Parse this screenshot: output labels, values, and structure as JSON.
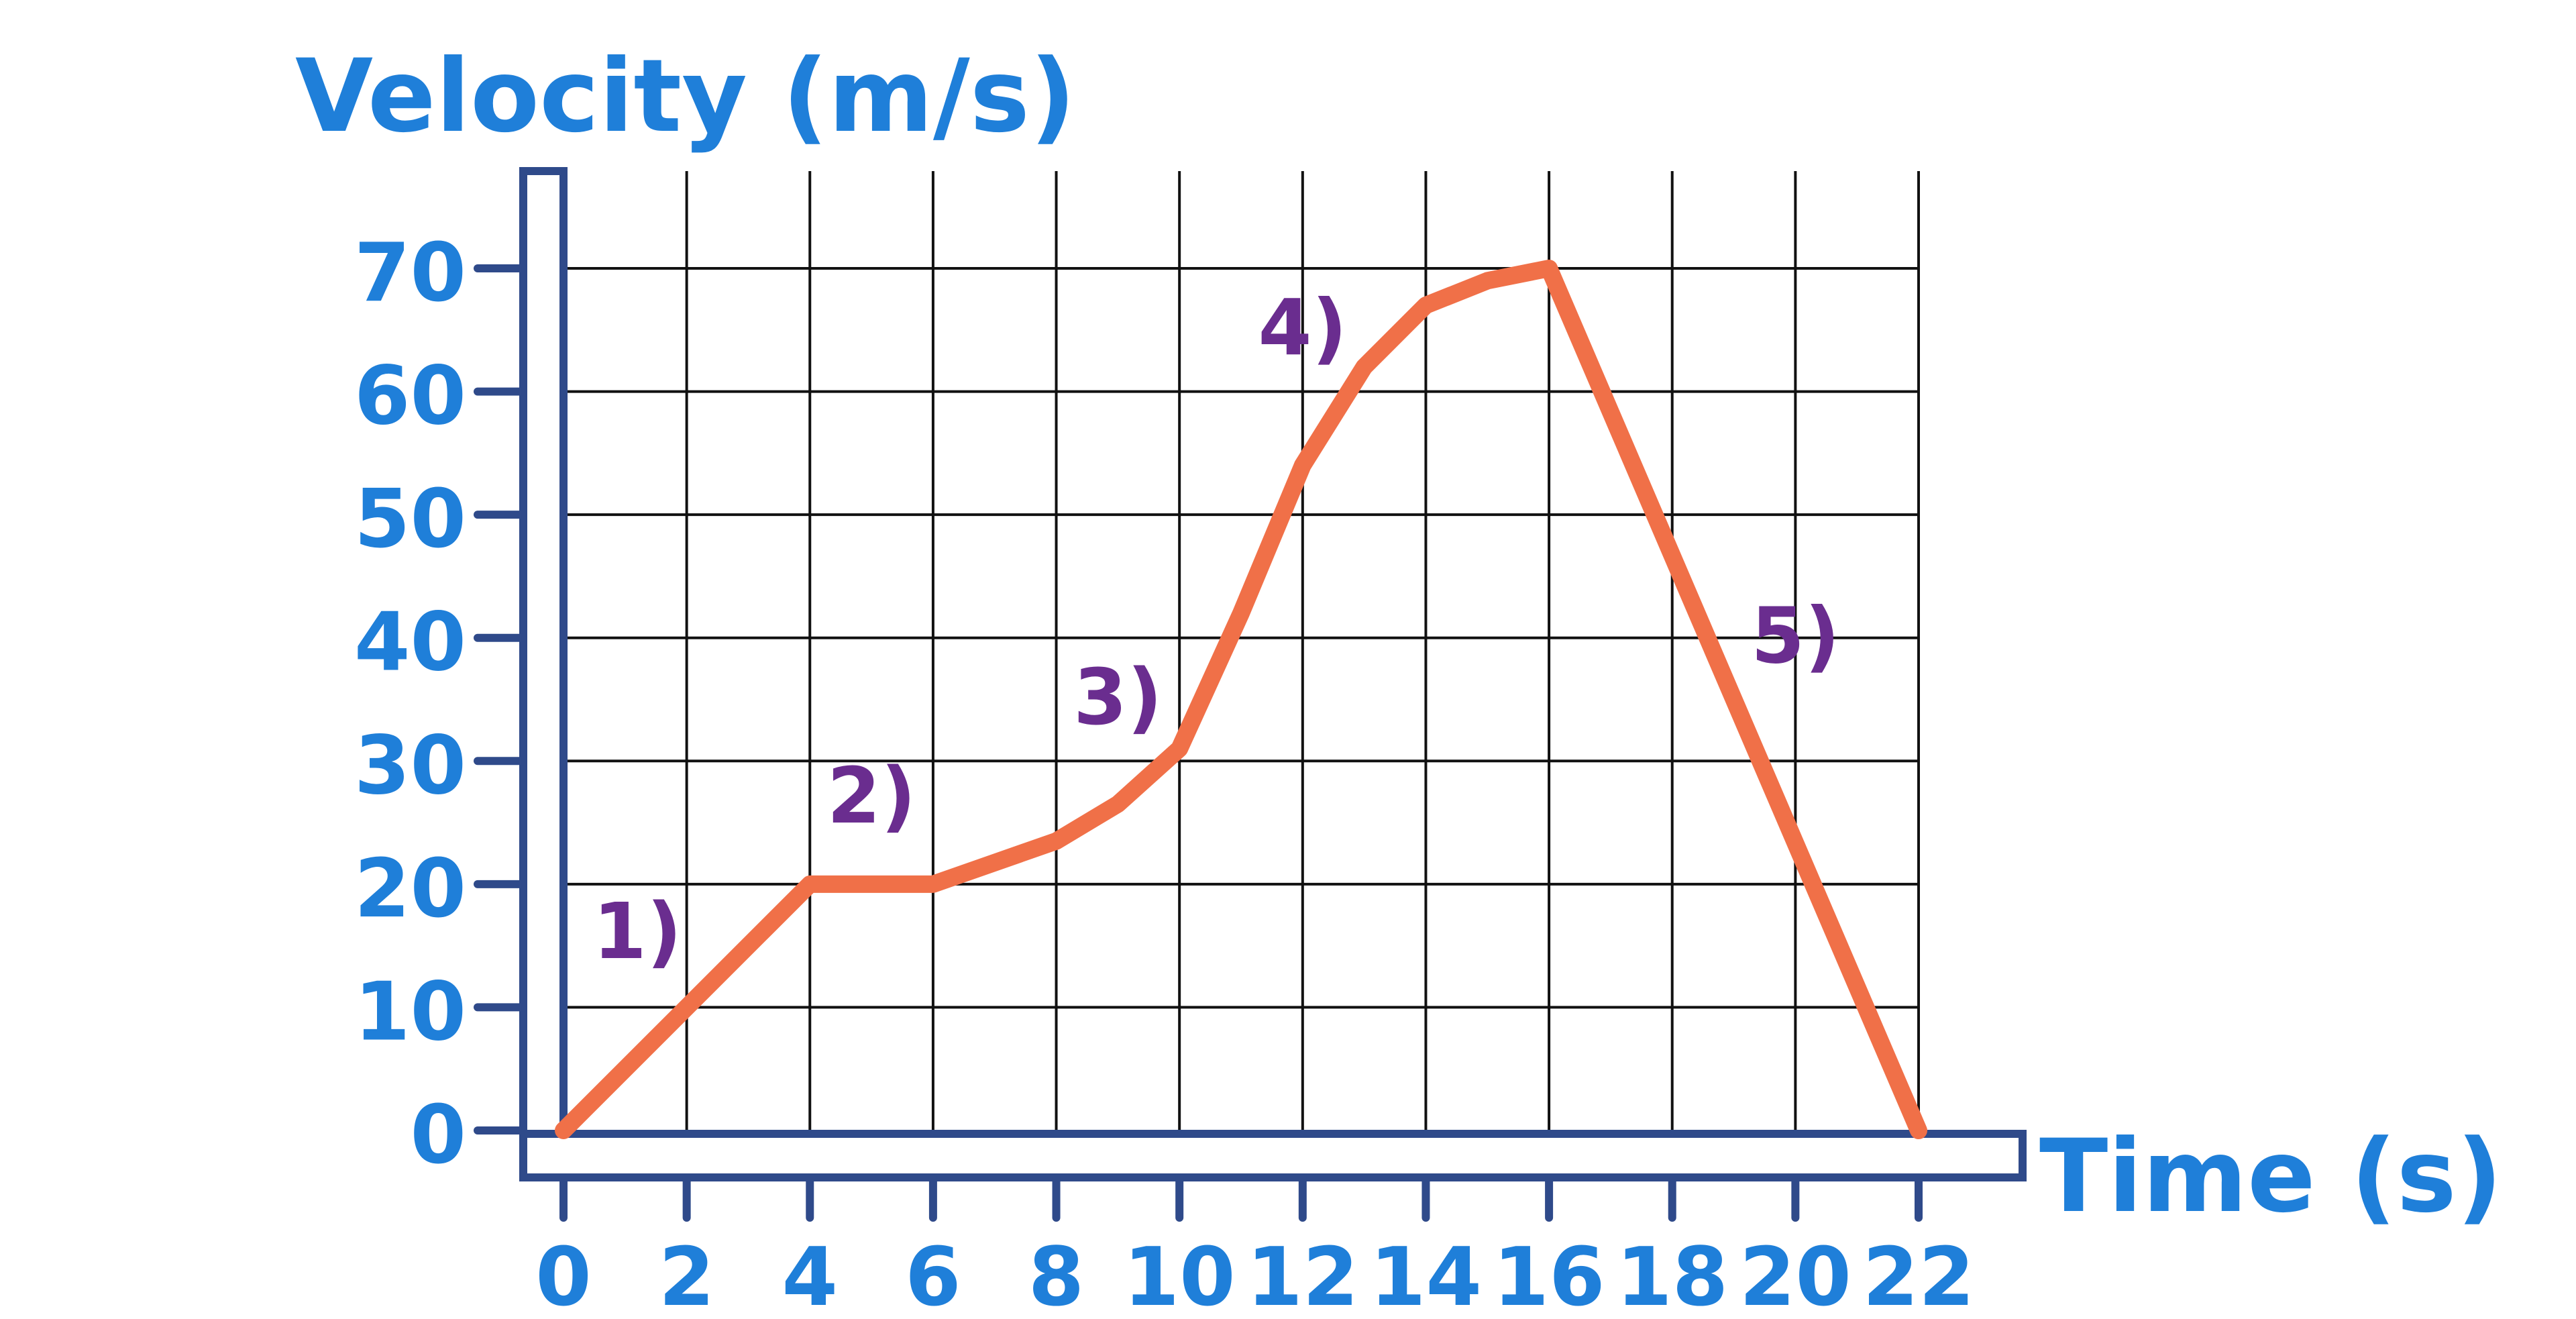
{
  "chart_data": {
    "type": "line",
    "ylabel": "Velocity (m/s)",
    "xlabel": "Time (s)",
    "xlim": [
      0,
      22
    ],
    "ylim": [
      0,
      70
    ],
    "x_ticks": [
      0,
      2,
      4,
      6,
      8,
      10,
      12,
      14,
      16,
      18,
      20,
      22
    ],
    "y_ticks": [
      0,
      10,
      20,
      30,
      40,
      50,
      60,
      70
    ],
    "grid": true,
    "series": [
      {
        "x": [
          0,
          4,
          6,
          8,
          9,
          10,
          11,
          12,
          13,
          14,
          15,
          16,
          22
        ],
        "y": [
          0,
          20,
          20,
          23.5,
          26.5,
          31,
          42,
          54,
          62,
          67,
          69,
          70,
          0
        ]
      }
    ],
    "annotations": [
      {
        "text": "1)",
        "x": 1.2,
        "y": 14
      },
      {
        "text": "2)",
        "x": 5,
        "y": 25
      },
      {
        "text": "3)",
        "x": 9,
        "y": 33
      },
      {
        "text": "4)",
        "x": 12,
        "y": 63
      },
      {
        "text": "5)",
        "x": 20,
        "y": 38
      }
    ],
    "colors": {
      "axis": "#2f4a8a",
      "label": "#1f7fd9",
      "line": "#f07048",
      "annotation": "#6a2d8f",
      "grid": "#111111"
    }
  }
}
